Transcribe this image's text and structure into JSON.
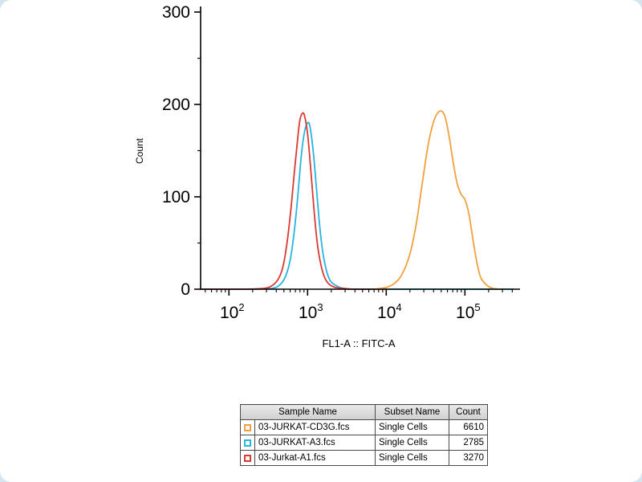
{
  "page": {
    "background": "#ffffff",
    "corner_background": "#d3e5ef"
  },
  "chart_data": {
    "type": "line",
    "title": "",
    "xlabel": "FL1-A :: FITC-A",
    "ylabel": "Count",
    "x_scale": "log10",
    "x_range_log10": [
      1.64,
      5.67
    ],
    "ylim": [
      0,
      300
    ],
    "y_major_ticks": [
      0,
      100,
      200,
      300
    ],
    "y_minor_ticks": [
      50,
      150,
      250
    ],
    "x_major_ticks": [
      {
        "base": "10",
        "exp": "2",
        "log10": 2
      },
      {
        "base": "10",
        "exp": "3",
        "log10": 3
      },
      {
        "base": "10",
        "exp": "4",
        "log10": 4
      },
      {
        "base": "10",
        "exp": "5",
        "log10": 5
      }
    ],
    "grid": false,
    "legend_position": "table-below",
    "series": [
      {
        "name": "03-JURKAT-A3.fcs",
        "color": "#27b4e0",
        "points": [
          [
            1.64,
            0
          ],
          [
            2.3,
            0
          ],
          [
            2.55,
            1
          ],
          [
            2.65,
            5
          ],
          [
            2.72,
            14
          ],
          [
            2.78,
            32
          ],
          [
            2.83,
            62
          ],
          [
            2.88,
            105
          ],
          [
            2.92,
            145
          ],
          [
            2.96,
            170
          ],
          [
            3.0,
            180
          ],
          [
            3.03,
            176
          ],
          [
            3.07,
            150
          ],
          [
            3.11,
            112
          ],
          [
            3.15,
            72
          ],
          [
            3.19,
            42
          ],
          [
            3.24,
            20
          ],
          [
            3.29,
            9
          ],
          [
            3.36,
            4
          ],
          [
            3.45,
            1
          ],
          [
            3.6,
            0
          ],
          [
            4.5,
            0
          ],
          [
            5.62,
            0
          ]
        ]
      },
      {
        "name": "03-Jurkat-A1.fcs",
        "color": "#d93a33",
        "points": [
          [
            1.64,
            0
          ],
          [
            2.2,
            0
          ],
          [
            2.45,
            1
          ],
          [
            2.55,
            4
          ],
          [
            2.62,
            10
          ],
          [
            2.68,
            22
          ],
          [
            2.73,
            45
          ],
          [
            2.78,
            80
          ],
          [
            2.83,
            125
          ],
          [
            2.87,
            160
          ],
          [
            2.9,
            182
          ],
          [
            2.93,
            190
          ],
          [
            2.96,
            188
          ],
          [
            3.0,
            168
          ],
          [
            3.04,
            130
          ],
          [
            3.08,
            88
          ],
          [
            3.12,
            52
          ],
          [
            3.17,
            26
          ],
          [
            3.22,
            12
          ],
          [
            3.28,
            5
          ],
          [
            3.35,
            2
          ],
          [
            3.45,
            1
          ],
          [
            3.6,
            0
          ],
          [
            4.0,
            0
          ]
        ]
      },
      {
        "name": "03-JURKAT-CD3G.fcs",
        "color": "#f0a13d",
        "points": [
          [
            3.85,
            0
          ],
          [
            4.0,
            2
          ],
          [
            4.1,
            6
          ],
          [
            4.2,
            16
          ],
          [
            4.3,
            38
          ],
          [
            4.38,
            70
          ],
          [
            4.45,
            110
          ],
          [
            4.52,
            150
          ],
          [
            4.58,
            175
          ],
          [
            4.64,
            189
          ],
          [
            4.7,
            193
          ],
          [
            4.75,
            186
          ],
          [
            4.8,
            165
          ],
          [
            4.85,
            138
          ],
          [
            4.9,
            115
          ],
          [
            4.95,
            103
          ],
          [
            5.0,
            97
          ],
          [
            5.05,
            82
          ],
          [
            5.1,
            55
          ],
          [
            5.15,
            30
          ],
          [
            5.2,
            13
          ],
          [
            5.27,
            5
          ],
          [
            5.35,
            1
          ],
          [
            5.45,
            0
          ]
        ]
      }
    ]
  },
  "legend_table": {
    "headers": [
      "Sample Name",
      "Subset Name",
      "Count"
    ],
    "rows": [
      {
        "sample": "03-JURKAT-CD3G.fcs",
        "subset": "Single Cells",
        "count": "6610",
        "color": "#f0a13d"
      },
      {
        "sample": "03-JURKAT-A3.fcs",
        "subset": "Single Cells",
        "count": "2785",
        "color": "#27b4e0"
      },
      {
        "sample": "03-Jurkat-A1.fcs",
        "subset": "Single Cells",
        "count": "3270",
        "color": "#d93a33"
      }
    ]
  }
}
